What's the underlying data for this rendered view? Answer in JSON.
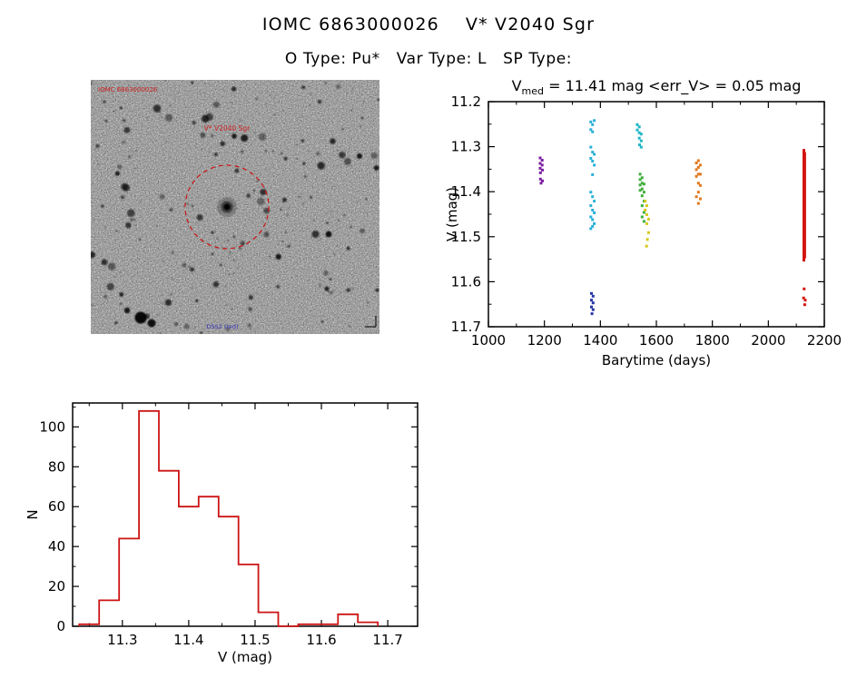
{
  "header": {
    "title": "IOMC 6863000026    V* V2040 Sgr",
    "subtitle": "O Type: Pu*   Var Type: L   SP Type:"
  },
  "finding_chart": {
    "label_id": "IOMC 6863000026",
    "label_star": "V* V2040 Sgr",
    "label_bottom": "DSS2 (red)",
    "circle_color": "#cc1111"
  },
  "lightcurve": {
    "title_v": "V",
    "title_sub": "med",
    "title_rest": " = 11.41 mag <err_V> = 0.05 mag"
  },
  "chart_data": [
    {
      "type": "scatter",
      "title": "V_med = 11.41 mag <err_V> = 0.05 mag",
      "xlabel": "Barytime (days)",
      "ylabel": "V (mag)",
      "xlim": [
        1000,
        2200
      ],
      "ylim": [
        11.2,
        11.7
      ],
      "y_direction": "down",
      "xticks": [
        1000,
        1200,
        1400,
        1600,
        1800,
        2000,
        2200
      ],
      "yticks": [
        11.2,
        11.3,
        11.4,
        11.5,
        11.6,
        11.7
      ],
      "grid": false,
      "series": [
        {
          "name": "epoch-1190",
          "color": "#7b1fa2",
          "points": [
            [
              1185,
              11.325
            ],
            [
              1185,
              11.337
            ],
            [
              1185,
              11.348
            ],
            [
              1186,
              11.358
            ],
            [
              1186,
              11.372
            ],
            [
              1188,
              11.381
            ],
            [
              1192,
              11.33
            ],
            [
              1192,
              11.341
            ],
            [
              1193,
              11.352
            ],
            [
              1193,
              11.376
            ]
          ]
        },
        {
          "name": "epoch-1370",
          "color": "#2ab0d8",
          "points": [
            [
              1366,
              11.245
            ],
            [
              1372,
              11.251
            ],
            [
              1378,
              11.242
            ],
            [
              1366,
              11.262
            ],
            [
              1372,
              11.267
            ],
            [
              1366,
              11.301
            ],
            [
              1372,
              11.312
            ],
            [
              1378,
              11.317
            ],
            [
              1366,
              11.326
            ],
            [
              1372,
              11.332
            ],
            [
              1378,
              11.341
            ],
            [
              1372,
              11.362
            ],
            [
              1366,
              11.401
            ],
            [
              1372,
              11.411
            ],
            [
              1378,
              11.421
            ],
            [
              1366,
              11.431
            ],
            [
              1372,
              11.441
            ],
            [
              1378,
              11.447
            ],
            [
              1366,
              11.456
            ],
            [
              1372,
              11.462
            ],
            [
              1378,
              11.471
            ],
            [
              1372,
              11.477
            ],
            [
              1366,
              11.482
            ]
          ]
        },
        {
          "name": "epoch-1370-faint",
          "color": "#2638a8",
          "points": [
            [
              1368,
              11.626
            ],
            [
              1374,
              11.632
            ],
            [
              1368,
              11.641
            ],
            [
              1374,
              11.647
            ],
            [
              1368,
              11.656
            ],
            [
              1374,
              11.662
            ],
            [
              1370,
              11.671
            ]
          ]
        },
        {
          "name": "epoch-1540-bright",
          "color": "#1fb6c4",
          "points": [
            [
              1532,
              11.251
            ],
            [
              1532,
              11.263
            ],
            [
              1539,
              11.256
            ],
            [
              1539,
              11.269
            ],
            [
              1539,
              11.281
            ],
            [
              1546,
              11.272
            ],
            [
              1546,
              11.287
            ],
            [
              1546,
              11.301
            ],
            [
              1540,
              11.296
            ]
          ]
        },
        {
          "name": "epoch-1550",
          "color": "#3fae3a",
          "points": [
            [
              1542,
              11.361
            ],
            [
              1542,
              11.373
            ],
            [
              1542,
              11.385
            ],
            [
              1542,
              11.397
            ],
            [
              1549,
              11.369
            ],
            [
              1549,
              11.381
            ],
            [
              1549,
              11.394
            ],
            [
              1549,
              11.409
            ],
            [
              1549,
              11.431
            ],
            [
              1556,
              11.383
            ],
            [
              1556,
              11.401
            ],
            [
              1556,
              11.421
            ],
            [
              1556,
              11.446
            ],
            [
              1549,
              11.456
            ],
            [
              1556,
              11.466
            ]
          ]
        },
        {
          "name": "epoch-1565",
          "color": "#d6c81e",
          "points": [
            [
              1560,
              11.421
            ],
            [
              1560,
              11.441
            ],
            [
              1566,
              11.431
            ],
            [
              1566,
              11.451
            ],
            [
              1566,
              11.471
            ],
            [
              1572,
              11.461
            ],
            [
              1572,
              11.491
            ],
            [
              1568,
              11.506
            ],
            [
              1565,
              11.521
            ]
          ]
        },
        {
          "name": "epoch-1750",
          "color": "#e2781c",
          "points": [
            [
              1743,
              11.336
            ],
            [
              1743,
              11.351
            ],
            [
              1743,
              11.366
            ],
            [
              1750,
              11.331
            ],
            [
              1750,
              11.346
            ],
            [
              1750,
              11.361
            ],
            [
              1750,
              11.381
            ],
            [
              1757,
              11.341
            ],
            [
              1757,
              11.361
            ],
            [
              1757,
              11.386
            ],
            [
              1750,
              11.401
            ],
            [
              1757,
              11.416
            ],
            [
              1750,
              11.426
            ],
            [
              1743,
              11.411
            ]
          ]
        },
        {
          "name": "epoch-2130",
          "color": "#d31410",
          "segments": [
            {
              "x": 2127,
              "y1": 11.305,
              "y2": 11.555
            },
            {
              "x": 2130,
              "y1": 11.312,
              "y2": 11.548
            }
          ],
          "points": [
            [
              2128,
              11.616
            ],
            [
              2126,
              11.636
            ],
            [
              2132,
              11.641
            ],
            [
              2130,
              11.651
            ]
          ]
        }
      ]
    },
    {
      "type": "histogram",
      "title": "",
      "xlabel": "V (mag)",
      "ylabel": "N",
      "xlim": [
        11.225,
        11.745
      ],
      "ylim": [
        0,
        112
      ],
      "xticks": [
        11.3,
        11.4,
        11.5,
        11.6,
        11.7
      ],
      "yticks": [
        0,
        20,
        40,
        60,
        80,
        100
      ],
      "grid": false,
      "bar_color": "#cc1414",
      "bin_width": 0.03,
      "bins": [
        {
          "x": 11.235,
          "n": 1
        },
        {
          "x": 11.265,
          "n": 13
        },
        {
          "x": 11.295,
          "n": 44
        },
        {
          "x": 11.325,
          "n": 108
        },
        {
          "x": 11.355,
          "n": 78
        },
        {
          "x": 11.385,
          "n": 60
        },
        {
          "x": 11.415,
          "n": 65
        },
        {
          "x": 11.445,
          "n": 55
        },
        {
          "x": 11.475,
          "n": 31
        },
        {
          "x": 11.505,
          "n": 7
        },
        {
          "x": 11.535,
          "n": 0
        },
        {
          "x": 11.565,
          "n": 1
        },
        {
          "x": 11.595,
          "n": 1
        },
        {
          "x": 11.625,
          "n": 6
        },
        {
          "x": 11.655,
          "n": 2
        }
      ]
    }
  ]
}
